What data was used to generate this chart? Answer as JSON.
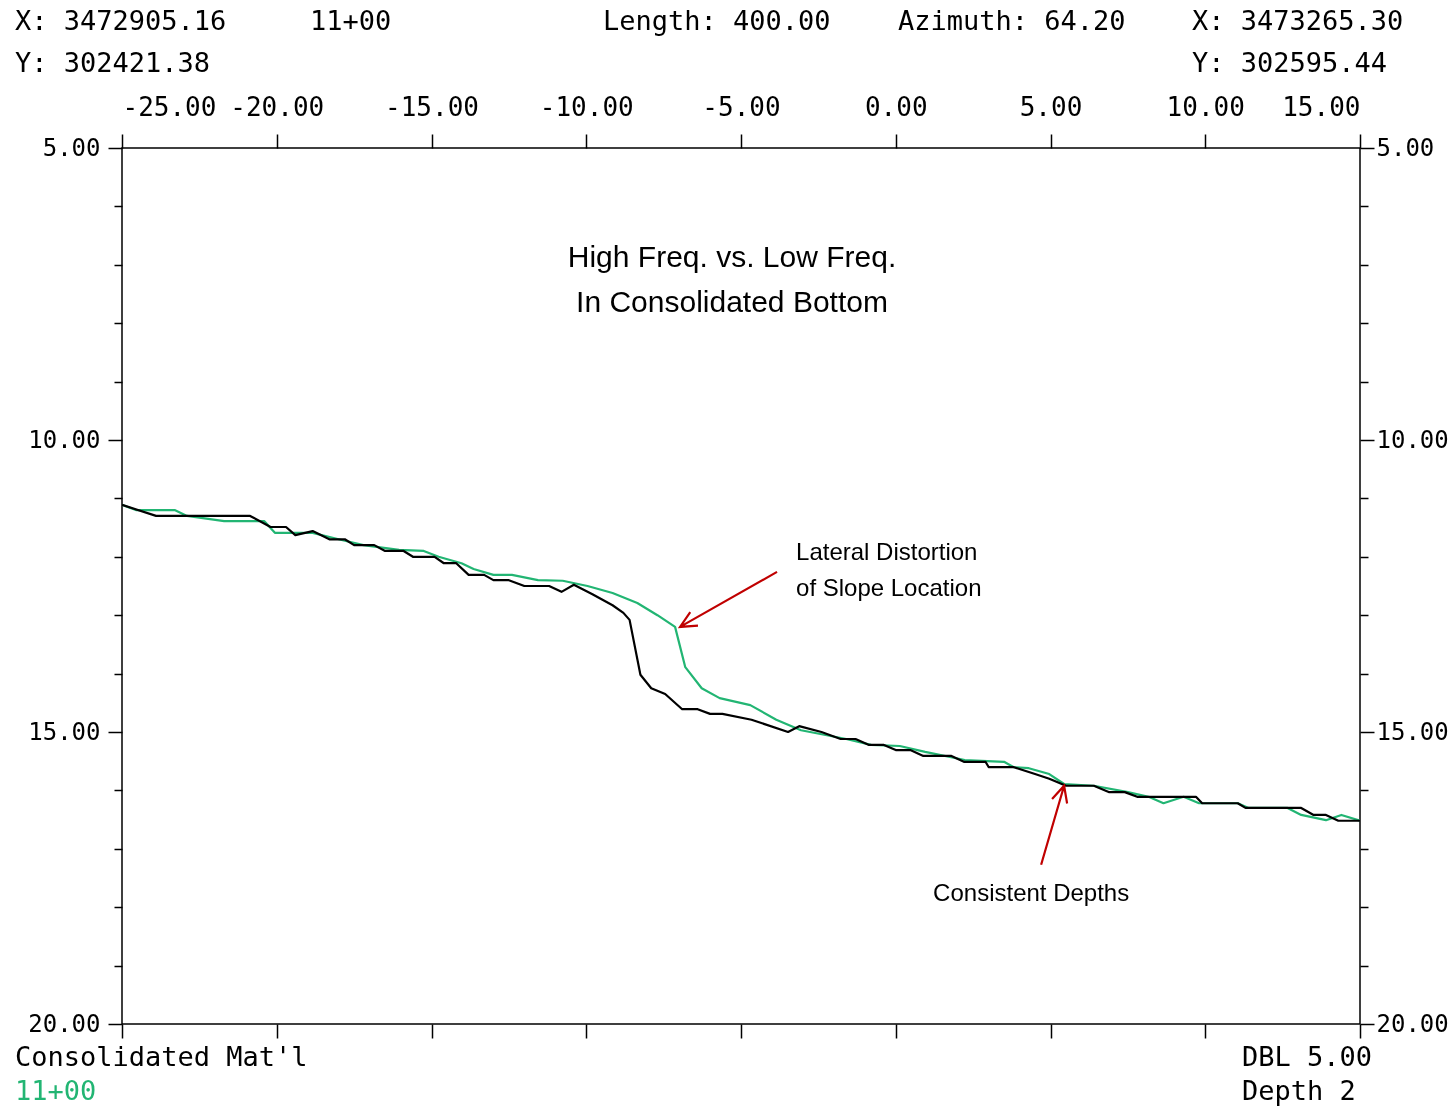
{
  "chart_data": {
    "type": "line",
    "title": "High Freq. vs. Low Freq. In Consolidated Bottom",
    "annotations": [
      "X: 3472905.16",
      "11+00",
      "Length: 400.00",
      "Azimuth: 64.20",
      "X: 3473265.30",
      "Y: 302421.38",
      "Y: 302595.44",
      "Consolidated Mat'l",
      "11+00",
      "DBL 5.00",
      "Depth 2",
      {
        "text": "Lateral Distortion of Slope Location",
        "x": -6.97,
        "y": 13.2
      },
      {
        "text": "Consistent Depths",
        "x": 5.44,
        "y": 15.92
      }
    ],
    "xlim": [
      -25,
      15
    ],
    "xticks": [
      {
        "value": -25,
        "label": "-25.00"
      },
      {
        "value": -20,
        "label": "-20.00"
      },
      {
        "value": -15,
        "label": "-15.00"
      },
      {
        "value": -10,
        "label": "-10.00"
      },
      {
        "value": -5,
        "label": "-5.00"
      },
      {
        "value": 0,
        "label": "0.00"
      },
      {
        "value": 5,
        "label": "5.00"
      },
      {
        "value": 10,
        "label": "10.00"
      },
      {
        "value": 15,
        "label": "15.00"
      }
    ],
    "ylim": [
      20,
      5
    ],
    "yticks": [
      {
        "value": 5,
        "label": "5.00"
      },
      {
        "value": 6,
        "label": null
      },
      {
        "value": 7,
        "label": null
      },
      {
        "value": 8,
        "label": null
      },
      {
        "value": 9,
        "label": null
      },
      {
        "value": 10,
        "label": "10.00"
      },
      {
        "value": 11,
        "label": null
      },
      {
        "value": 12,
        "label": null
      },
      {
        "value": 13,
        "label": null
      },
      {
        "value": 14,
        "label": null
      },
      {
        "value": 15,
        "label": "15.00"
      },
      {
        "value": 16,
        "label": null
      },
      {
        "value": 17,
        "label": null
      },
      {
        "value": 18,
        "label": null
      },
      {
        "value": 19,
        "label": null
      },
      {
        "value": 20,
        "label": "20.00"
      }
    ],
    "y2lim": [
      20,
      5
    ],
    "y2ticks": [
      {
        "value": 5,
        "label": "5.00"
      },
      {
        "value": 6,
        "label": null
      },
      {
        "value": 7,
        "label": null
      },
      {
        "value": 8,
        "label": null
      },
      {
        "value": 9,
        "label": null
      },
      {
        "value": 10,
        "label": "10.00"
      },
      {
        "value": 11,
        "label": null
      },
      {
        "value": 12,
        "label": null
      },
      {
        "value": 13,
        "label": null
      },
      {
        "value": 14,
        "label": null
      },
      {
        "value": 15,
        "label": "15.00"
      },
      {
        "value": 16,
        "label": null
      },
      {
        "value": 17,
        "label": null
      },
      {
        "value": 18,
        "label": null
      },
      {
        "value": 19,
        "label": null
      },
      {
        "value": 20,
        "label": "20.00"
      }
    ],
    "grid": false,
    "marker": "none",
    "line_style": "solid",
    "series": [
      {
        "color": "#22b573",
        "x": [
          -25,
          -24.55,
          -23.3,
          -22.9,
          -21.7,
          -20.4,
          -20.06,
          -18.84,
          -18,
          -17.2,
          -16.05,
          -15.25,
          -14.77,
          -14.03,
          -13.64,
          -13,
          -12.4,
          -11.56,
          -10.76,
          -9.96,
          -9.15,
          -8.35,
          -7.7,
          -7.13,
          -6.8,
          -6.27,
          -5.69,
          -4.7,
          -3.86,
          -3.06,
          -1.6,
          -0.8,
          0.13,
          0.95,
          2.23,
          3.5,
          3.8,
          4.3,
          4.96,
          5.44,
          6.4,
          7.5,
          8.17,
          8.65,
          9.3,
          9.8,
          11.05,
          11.4,
          12.66,
          13.1,
          13.9,
          14.4,
          15
        ],
        "values": [
          11.11,
          11.2,
          11.2,
          11.3,
          11.39,
          11.39,
          11.59,
          11.59,
          11.7,
          11.8,
          11.88,
          11.9,
          12,
          12.11,
          12.21,
          12.31,
          12.31,
          12.4,
          12.41,
          12.5,
          12.62,
          12.79,
          13,
          13.2,
          13.89,
          14.25,
          14.42,
          14.54,
          14.79,
          14.97,
          15.12,
          15.22,
          15.24,
          15.34,
          15.48,
          15.51,
          15.6,
          15.62,
          15.72,
          15.89,
          15.92,
          16.03,
          16.11,
          16.22,
          16.11,
          16.22,
          16.22,
          16.3,
          16.3,
          16.42,
          16.51,
          16.42,
          16.52
        ]
      },
      {
        "color": "#000000",
        "x": [
          -25,
          -23.9,
          -20.86,
          -20.2,
          -19.7,
          -19.4,
          -18.84,
          -18.3,
          -17.8,
          -17.5,
          -16.85,
          -16.5,
          -15.9,
          -15.6,
          -14.9,
          -14.6,
          -14.2,
          -13.8,
          -13.3,
          -13,
          -12.5,
          -12,
          -11.2,
          -10.8,
          -10.4,
          -9.8,
          -9.15,
          -8.8,
          -8.6,
          -8.25,
          -7.9,
          -7.45,
          -6.9,
          -6.4,
          -6,
          -5.6,
          -4.66,
          -3.48,
          -3.12,
          -2.4,
          -1.78,
          -1.3,
          -0.88,
          -0.4,
          0,
          0.47,
          0.89,
          1.8,
          2.2,
          2.9,
          3,
          3.8,
          4.5,
          4.96,
          5.5,
          6.4,
          6.9,
          7.4,
          7.8,
          9.7,
          9.9,
          11.05,
          11.3,
          13.1,
          13.5,
          13.9,
          14.3,
          15
        ],
        "values": [
          11.11,
          11.3,
          11.3,
          11.49,
          11.49,
          11.63,
          11.56,
          11.7,
          11.7,
          11.8,
          11.8,
          11.9,
          11.9,
          12,
          12,
          12.11,
          12.11,
          12.31,
          12.31,
          12.4,
          12.4,
          12.5,
          12.5,
          12.6,
          12.48,
          12.64,
          12.83,
          12.96,
          13.08,
          14.02,
          14.25,
          14.35,
          14.61,
          14.61,
          14.69,
          14.69,
          14.79,
          15,
          14.9,
          15,
          15.12,
          15.12,
          15.22,
          15.22,
          15.31,
          15.31,
          15.41,
          15.41,
          15.51,
          15.51,
          15.6,
          15.6,
          15.72,
          15.8,
          15.92,
          15.92,
          16.03,
          16.03,
          16.11,
          16.11,
          16.22,
          16.22,
          16.3,
          16.3,
          16.42,
          16.42,
          16.52,
          16.52
        ]
      }
    ]
  }
}
